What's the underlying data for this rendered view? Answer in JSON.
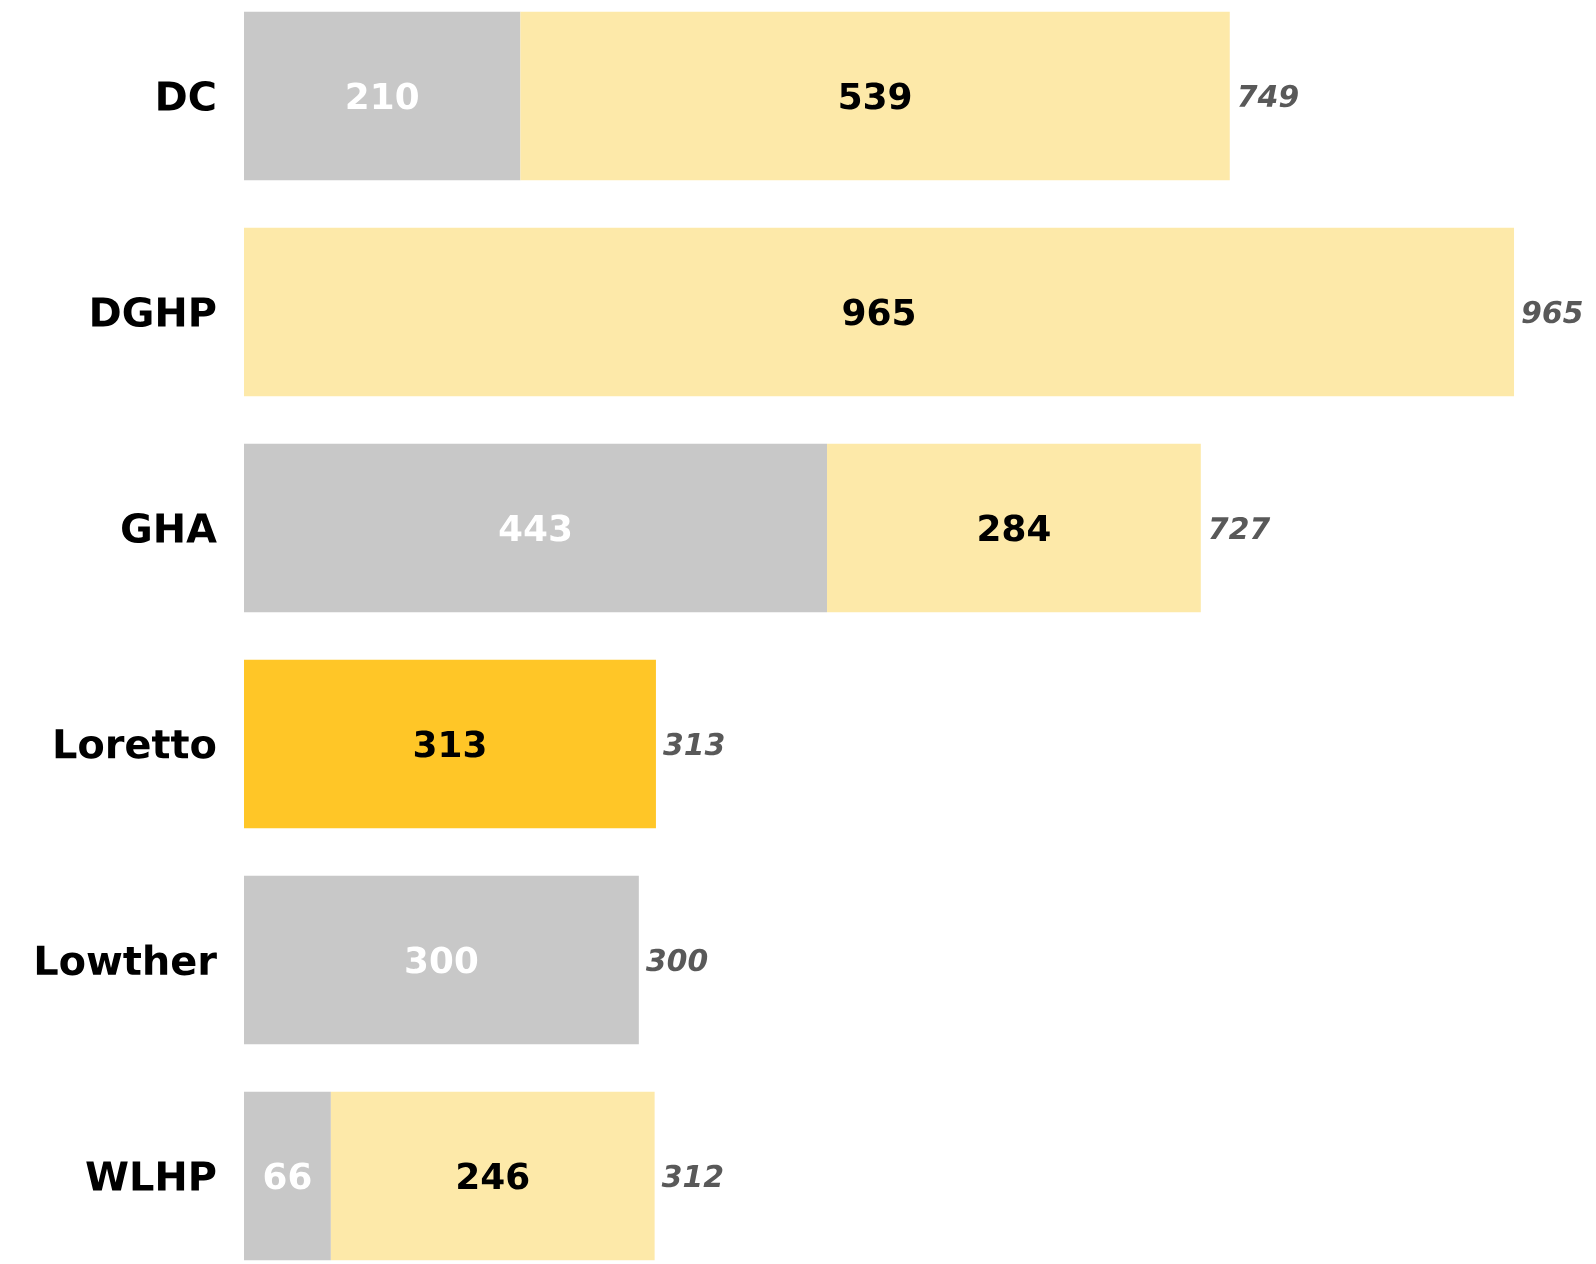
{
  "chart_data": {
    "type": "bar",
    "orientation": "horizontal",
    "stacked": true,
    "data_labels": true,
    "categories": [
      "DC",
      "DGHP",
      "GHA",
      "Loretto",
      "Lowther",
      "WLHP"
    ],
    "series": [
      {
        "color": "#c8c8c8",
        "values": [
          210,
          null,
          443,
          null,
          300,
          66
        ]
      },
      {
        "color": "#fde9a9",
        "colors": [
          "#fde9a9",
          "#fde9a9",
          "#fde9a9",
          "#ffc627",
          "#fde9a9",
          "#fde9a9"
        ],
        "values": [
          539,
          965,
          284,
          313,
          null,
          246
        ]
      }
    ],
    "totals": [
      "749",
      "965",
      "727",
      "313",
      "300",
      "312"
    ]
  }
}
